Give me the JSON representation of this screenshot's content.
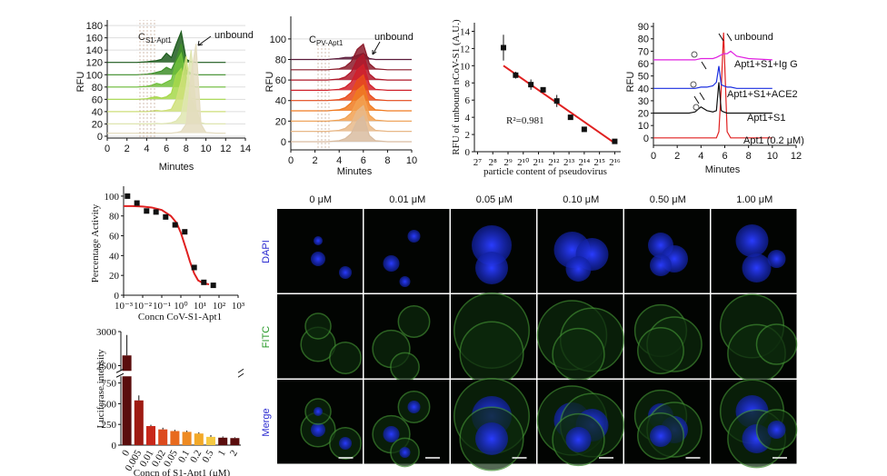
{
  "chart_data": [
    {
      "type": "line",
      "filled": true,
      "grid": true,
      "xlabel": "Minutes",
      "ylabel": "RFU",
      "xlim": [
        0,
        14
      ],
      "xticks": [
        0,
        2,
        4,
        6,
        8,
        10,
        12,
        14
      ],
      "ylim": [
        -3,
        189
      ],
      "yticks": [
        0,
        20,
        40,
        60,
        80,
        100,
        120,
        140,
        160,
        180
      ],
      "annotations": [
        {
          "text": "C",
          "sub": "S1-Apt1"
        },
        {
          "text": "unbound"
        }
      ],
      "x": [
        0,
        3,
        4,
        4.5,
        5,
        5.5,
        6,
        6.5,
        7,
        7.5,
        8,
        8.5,
        9,
        9.5,
        10,
        11,
        12
      ],
      "series": [
        {
          "color": "#1e5c1e",
          "values": [
            120,
            120,
            121,
            122,
            123,
            125,
            135,
            128,
            150,
            170,
            125,
            121,
            120,
            120,
            120,
            120,
            120
          ]
        },
        {
          "color": "#3f8f2a",
          "values": [
            100,
            100,
            101,
            102,
            104,
            106,
            112,
            108,
            125,
            150,
            108,
            102,
            100,
            100,
            100,
            100,
            100
          ]
        },
        {
          "color": "#6fbf3a",
          "values": [
            80,
            80,
            81,
            83,
            86,
            84,
            88,
            92,
            120,
            135,
            95,
            82,
            80,
            80,
            80,
            80,
            80
          ]
        },
        {
          "color": "#a6d84a",
          "values": [
            60,
            60,
            61,
            63,
            64,
            62,
            64,
            70,
            100,
            110,
            75,
            62,
            60,
            60,
            60,
            60,
            60
          ]
        },
        {
          "color": "#cfe07a",
          "values": [
            40,
            40,
            40,
            41,
            42,
            41,
            42,
            44,
            60,
            90,
            130,
            60,
            42,
            40,
            40,
            40,
            40
          ]
        },
        {
          "color": "#dfe6b0",
          "values": [
            20,
            20,
            20,
            20,
            21,
            20,
            21,
            22,
            25,
            35,
            80,
            140,
            45,
            22,
            20,
            20,
            20
          ]
        },
        {
          "color": "#e4dcc0",
          "values": [
            5,
            5,
            5,
            5,
            5,
            5,
            5,
            5,
            6,
            8,
            20,
            100,
            150,
            20,
            6,
            5,
            5
          ]
        }
      ]
    },
    {
      "type": "line",
      "filled": true,
      "grid": true,
      "xlabel": "Minutes",
      "ylabel": "RFU",
      "xlim": [
        0,
        10
      ],
      "xticks": [
        0,
        2,
        4,
        6,
        8,
        10
      ],
      "ylim": [
        -8,
        122
      ],
      "yticks": [
        0,
        20,
        40,
        60,
        80,
        100
      ],
      "annotations": [
        {
          "text": "C",
          "sub": "PV-Apt1"
        },
        {
          "text": "unbound"
        }
      ],
      "x": [
        0,
        2,
        3,
        4,
        4.5,
        5,
        5.5,
        6,
        6.5,
        7,
        8,
        10
      ],
      "series": [
        {
          "color": "#5a1a3a",
          "values": [
            80,
            80,
            80,
            81,
            82,
            82,
            84,
            86,
            81,
            80,
            80,
            80
          ]
        },
        {
          "color": "#8b1a2a",
          "values": [
            70,
            70,
            70,
            71,
            73,
            78,
            90,
            95,
            76,
            71,
            70,
            70
          ]
        },
        {
          "color": "#b0182a",
          "values": [
            60,
            60,
            60,
            61,
            63,
            68,
            80,
            85,
            66,
            61,
            60,
            60
          ]
        },
        {
          "color": "#d0202a",
          "values": [
            50,
            50,
            50,
            51,
            53,
            58,
            70,
            75,
            56,
            51,
            50,
            50
          ]
        },
        {
          "color": "#e84a1a",
          "values": [
            40,
            40,
            40,
            41,
            43,
            48,
            60,
            65,
            46,
            41,
            40,
            40
          ]
        },
        {
          "color": "#f07a20",
          "values": [
            30,
            30,
            30,
            31,
            33,
            38,
            50,
            55,
            36,
            31,
            30,
            30
          ]
        },
        {
          "color": "#f2a050",
          "values": [
            20,
            20,
            20,
            21,
            23,
            28,
            40,
            45,
            26,
            21,
            20,
            20
          ]
        },
        {
          "color": "#e8b888",
          "values": [
            10,
            10,
            10,
            11,
            13,
            18,
            30,
            35,
            16,
            11,
            10,
            10
          ]
        },
        {
          "color": "#d9bca0",
          "values": [
            0,
            0,
            0,
            1,
            3,
            8,
            20,
            25,
            6,
            1,
            0,
            0
          ]
        }
      ]
    },
    {
      "type": "scatter",
      "xlog": true,
      "xlabel": "particle content of pseudovirus",
      "ylabel": "RFU of unbound nCoV-S1 (A.U.)",
      "xlim": [
        111,
        86000
      ],
      "xticks": [
        {
          "value": 128,
          "label": "2⁷"
        },
        {
          "value": 256,
          "label": "2⁸"
        },
        {
          "value": 512,
          "label": "2⁹"
        },
        {
          "value": 1024,
          "label": "2¹⁰"
        },
        {
          "value": 2048,
          "label": "2¹¹"
        },
        {
          "value": 4096,
          "label": "2¹²"
        },
        {
          "value": 8192,
          "label": "2¹³"
        },
        {
          "value": 16384,
          "label": "2¹⁴"
        },
        {
          "value": 32768,
          "label": "2¹⁵"
        },
        {
          "value": 65536,
          "label": "2¹⁶"
        }
      ],
      "ylim": [
        0,
        15
      ],
      "yticks": [
        0,
        2,
        4,
        6,
        8,
        10,
        12,
        14
      ],
      "color": "#111111",
      "fit_color": "#e02020",
      "annotations": [
        {
          "text": "R²=0.981"
        }
      ],
      "x": [
        416,
        724,
        1448,
        2521,
        4705,
        8780,
        16384,
        65536
      ],
      "values": [
        12.1,
        8.9,
        7.8,
        7.2,
        5.9,
        4.0,
        2.6,
        1.2
      ],
      "errors": [
        1.5,
        0.4,
        0.6,
        0.3,
        0.7,
        0.3,
        0.2,
        0.15
      ],
      "fit": {
        "x": [
          416,
          65536
        ],
        "values": [
          10,
          1
        ]
      }
    },
    {
      "type": "line",
      "xlabel": "Minutes",
      "ylabel": "RFU",
      "xlim": [
        0,
        12
      ],
      "xticks": [
        0,
        2,
        4,
        6,
        8,
        10,
        12
      ],
      "ylim": [
        -6,
        93
      ],
      "yticks": [
        0,
        10,
        20,
        30,
        40,
        50,
        60,
        70,
        80,
        90
      ],
      "annotations": [
        {
          "text": "unbound"
        }
      ],
      "x": [
        0,
        3,
        3.5,
        4,
        4.5,
        5,
        5.3,
        5.5,
        5.7,
        5.9,
        6.2,
        6.5,
        7,
        8,
        10
      ],
      "series": [
        {
          "name": "Apt1 (0.2 μM)",
          "color": "#e02020",
          "values": [
            0,
            0,
            0,
            0,
            0,
            0,
            0,
            5,
            40,
            85,
            5,
            0,
            0,
            0,
            0
          ]
        },
        {
          "name": "Apt1+S1",
          "color": "#111111",
          "values": [
            20,
            20,
            21,
            25,
            22,
            21,
            22,
            45,
            22,
            21,
            20,
            20,
            20,
            20,
            20
          ]
        },
        {
          "name": "Apt1+S1+ACE2",
          "color": "#1a2ee0",
          "values": [
            40,
            40,
            40,
            41,
            41,
            42,
            45,
            58,
            43,
            42,
            41,
            41,
            40,
            40,
            40
          ]
        },
        {
          "name": "Apt1+S1+Ig G",
          "color": "#e020e0",
          "values": [
            63,
            63,
            63,
            64,
            64,
            64,
            65,
            66,
            67,
            68,
            68,
            70,
            66,
            64,
            63
          ]
        }
      ]
    },
    {
      "type": "scatter",
      "xlog": true,
      "xlabel": "Concn CoV-S1-Apt1",
      "ylabel": "Percentage Activity",
      "xlim": [
        0.001,
        1000
      ],
      "xticks": [
        {
          "value": 0.001,
          "label": "10⁻³"
        },
        {
          "value": 0.01,
          "label": "10⁻²"
        },
        {
          "value": 0.1,
          "label": "10⁻¹"
        },
        {
          "value": 1,
          "label": "10⁰"
        },
        {
          "value": 10,
          "label": "10¹"
        },
        {
          "value": 100,
          "label": "10²"
        },
        {
          "value": 1000,
          "label": "10³"
        }
      ],
      "ylim": [
        0,
        110
      ],
      "yticks": [
        0,
        20,
        40,
        60,
        80,
        100
      ],
      "color": "#111111",
      "fit_color": "#e02020",
      "x": [
        0.0016,
        0.005,
        0.016,
        0.05,
        0.16,
        0.5,
        1.6,
        5,
        16,
        50
      ],
      "values": [
        100,
        93,
        85,
        84,
        79,
        71,
        64,
        28,
        13,
        10
      ],
      "fit": {
        "x": [
          0.001,
          0.003,
          0.01,
          0.03,
          0.1,
          0.3,
          0.6,
          1,
          2,
          3,
          5,
          8,
          15,
          30
        ],
        "values": [
          90,
          90,
          89.5,
          88.5,
          86,
          80,
          73,
          63,
          45,
          34,
          22,
          15,
          12,
          11
        ]
      }
    },
    {
      "type": "bar",
      "xlabel": "Concn of S1-Apt1 (μM)",
      "ylabel": "Luciferase intensity",
      "ylim": [
        0,
        3000
      ],
      "ybreak": [
        850,
        2400
      ],
      "yticks": [
        0,
        250,
        500,
        750,
        2500,
        3000
      ],
      "categories": [
        "0",
        "0.005",
        "0.01",
        "0.02",
        "0.05",
        "0.1",
        "0.2",
        "0.5",
        "1",
        "2"
      ],
      "values": [
        2650,
        540,
        230,
        190,
        170,
        160,
        140,
        100,
        90,
        85
      ],
      "errors": [
        300,
        60,
        15,
        20,
        15,
        15,
        15,
        20,
        15,
        10
      ],
      "colors": [
        "#5a0d0d",
        "#9e1b12",
        "#c8281a",
        "#dc4a1e",
        "#e86a1e",
        "#ee8a22",
        "#f2a828",
        "#f5c842",
        "#5a0d0d",
        "#5a0d0d"
      ]
    }
  ],
  "microscopy": {
    "columns": [
      "0 μM",
      "0.01 μM",
      "0.05 μM",
      "0.10 μM",
      "0.50 μM",
      "1.00 μM"
    ],
    "rows": [
      "DAPI",
      "FITC",
      "Merge"
    ]
  }
}
